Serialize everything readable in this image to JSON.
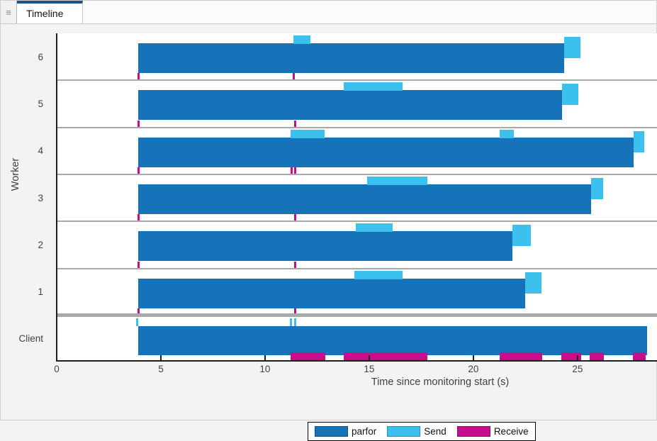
{
  "window": {
    "tab_label": "Timeline",
    "menu_icon": "hamburger-menu-icon",
    "menu_glyph": "≡"
  },
  "chart_data": {
    "type": "gantt-timeline",
    "title": "",
    "xlabel": "Time since monitoring start (s)",
    "ylabel": "Worker",
    "xlim": [
      0,
      28.85
    ],
    "xticks": [
      0,
      5,
      10,
      15,
      20,
      25
    ],
    "grid": "off",
    "legend_position": "south-outside",
    "colors": {
      "parfor": "#1673b9",
      "send": "#3cc0ee",
      "receive": "#ca0d8c"
    },
    "legend": [
      {
        "label": "parfor",
        "key": "parfor"
      },
      {
        "label": "Send",
        "key": "send"
      },
      {
        "label": "Receive",
        "key": "receive"
      }
    ],
    "rows": [
      {
        "label": "6",
        "type": "worker",
        "parfor": [
          3.9,
          24.35
        ],
        "send": [
          [
            11.38,
            12.19
          ]
        ],
        "send_end": [
          24.35,
          25.15
        ],
        "receive_ticks": [
          3.9,
          11.38
        ]
      },
      {
        "label": "5",
        "type": "worker",
        "parfor": [
          3.9,
          24.25
        ],
        "send": [
          [
            13.77,
            16.59
          ]
        ],
        "send_end": [
          24.25,
          25.03
        ],
        "receive_ticks": [
          3.9,
          11.42
        ]
      },
      {
        "label": "4",
        "type": "worker",
        "parfor": [
          3.9,
          27.71
        ],
        "send": [
          [
            11.24,
            12.87
          ],
          [
            21.26,
            21.96
          ]
        ],
        "send_end": [
          27.71,
          28.22
        ],
        "receive_ticks": [
          3.9,
          11.25,
          11.43
        ]
      },
      {
        "label": "3",
        "type": "worker",
        "parfor": [
          3.9,
          25.66
        ],
        "send": [
          [
            14.91,
            17.79
          ]
        ],
        "send_end": [
          25.66,
          26.23
        ],
        "receive_ticks": [
          3.9,
          11.42
        ]
      },
      {
        "label": "2",
        "type": "worker",
        "parfor": [
          3.9,
          21.86
        ],
        "send": [
          [
            14.35,
            16.12
          ]
        ],
        "send_end": [
          21.86,
          22.76
        ],
        "receive_ticks": [
          3.9,
          11.42
        ]
      },
      {
        "label": "1",
        "type": "worker",
        "parfor": [
          3.9,
          22.48
        ],
        "send": [
          [
            14.29,
            16.61
          ]
        ],
        "send_end": [
          22.48,
          23.27
        ],
        "receive_ticks": [
          3.9,
          11.42
        ]
      },
      {
        "label": "Client",
        "type": "client",
        "parfor": [
          3.9,
          28.35
        ],
        "send_ticks": [
          3.86,
          11.22,
          11.43
        ],
        "receive": [
          [
            11.24,
            12.88
          ],
          [
            13.79,
            17.78
          ],
          [
            21.26,
            23.3
          ],
          [
            24.21,
            25.17
          ],
          [
            25.6,
            26.26
          ],
          [
            27.65,
            28.27
          ]
        ]
      }
    ]
  }
}
